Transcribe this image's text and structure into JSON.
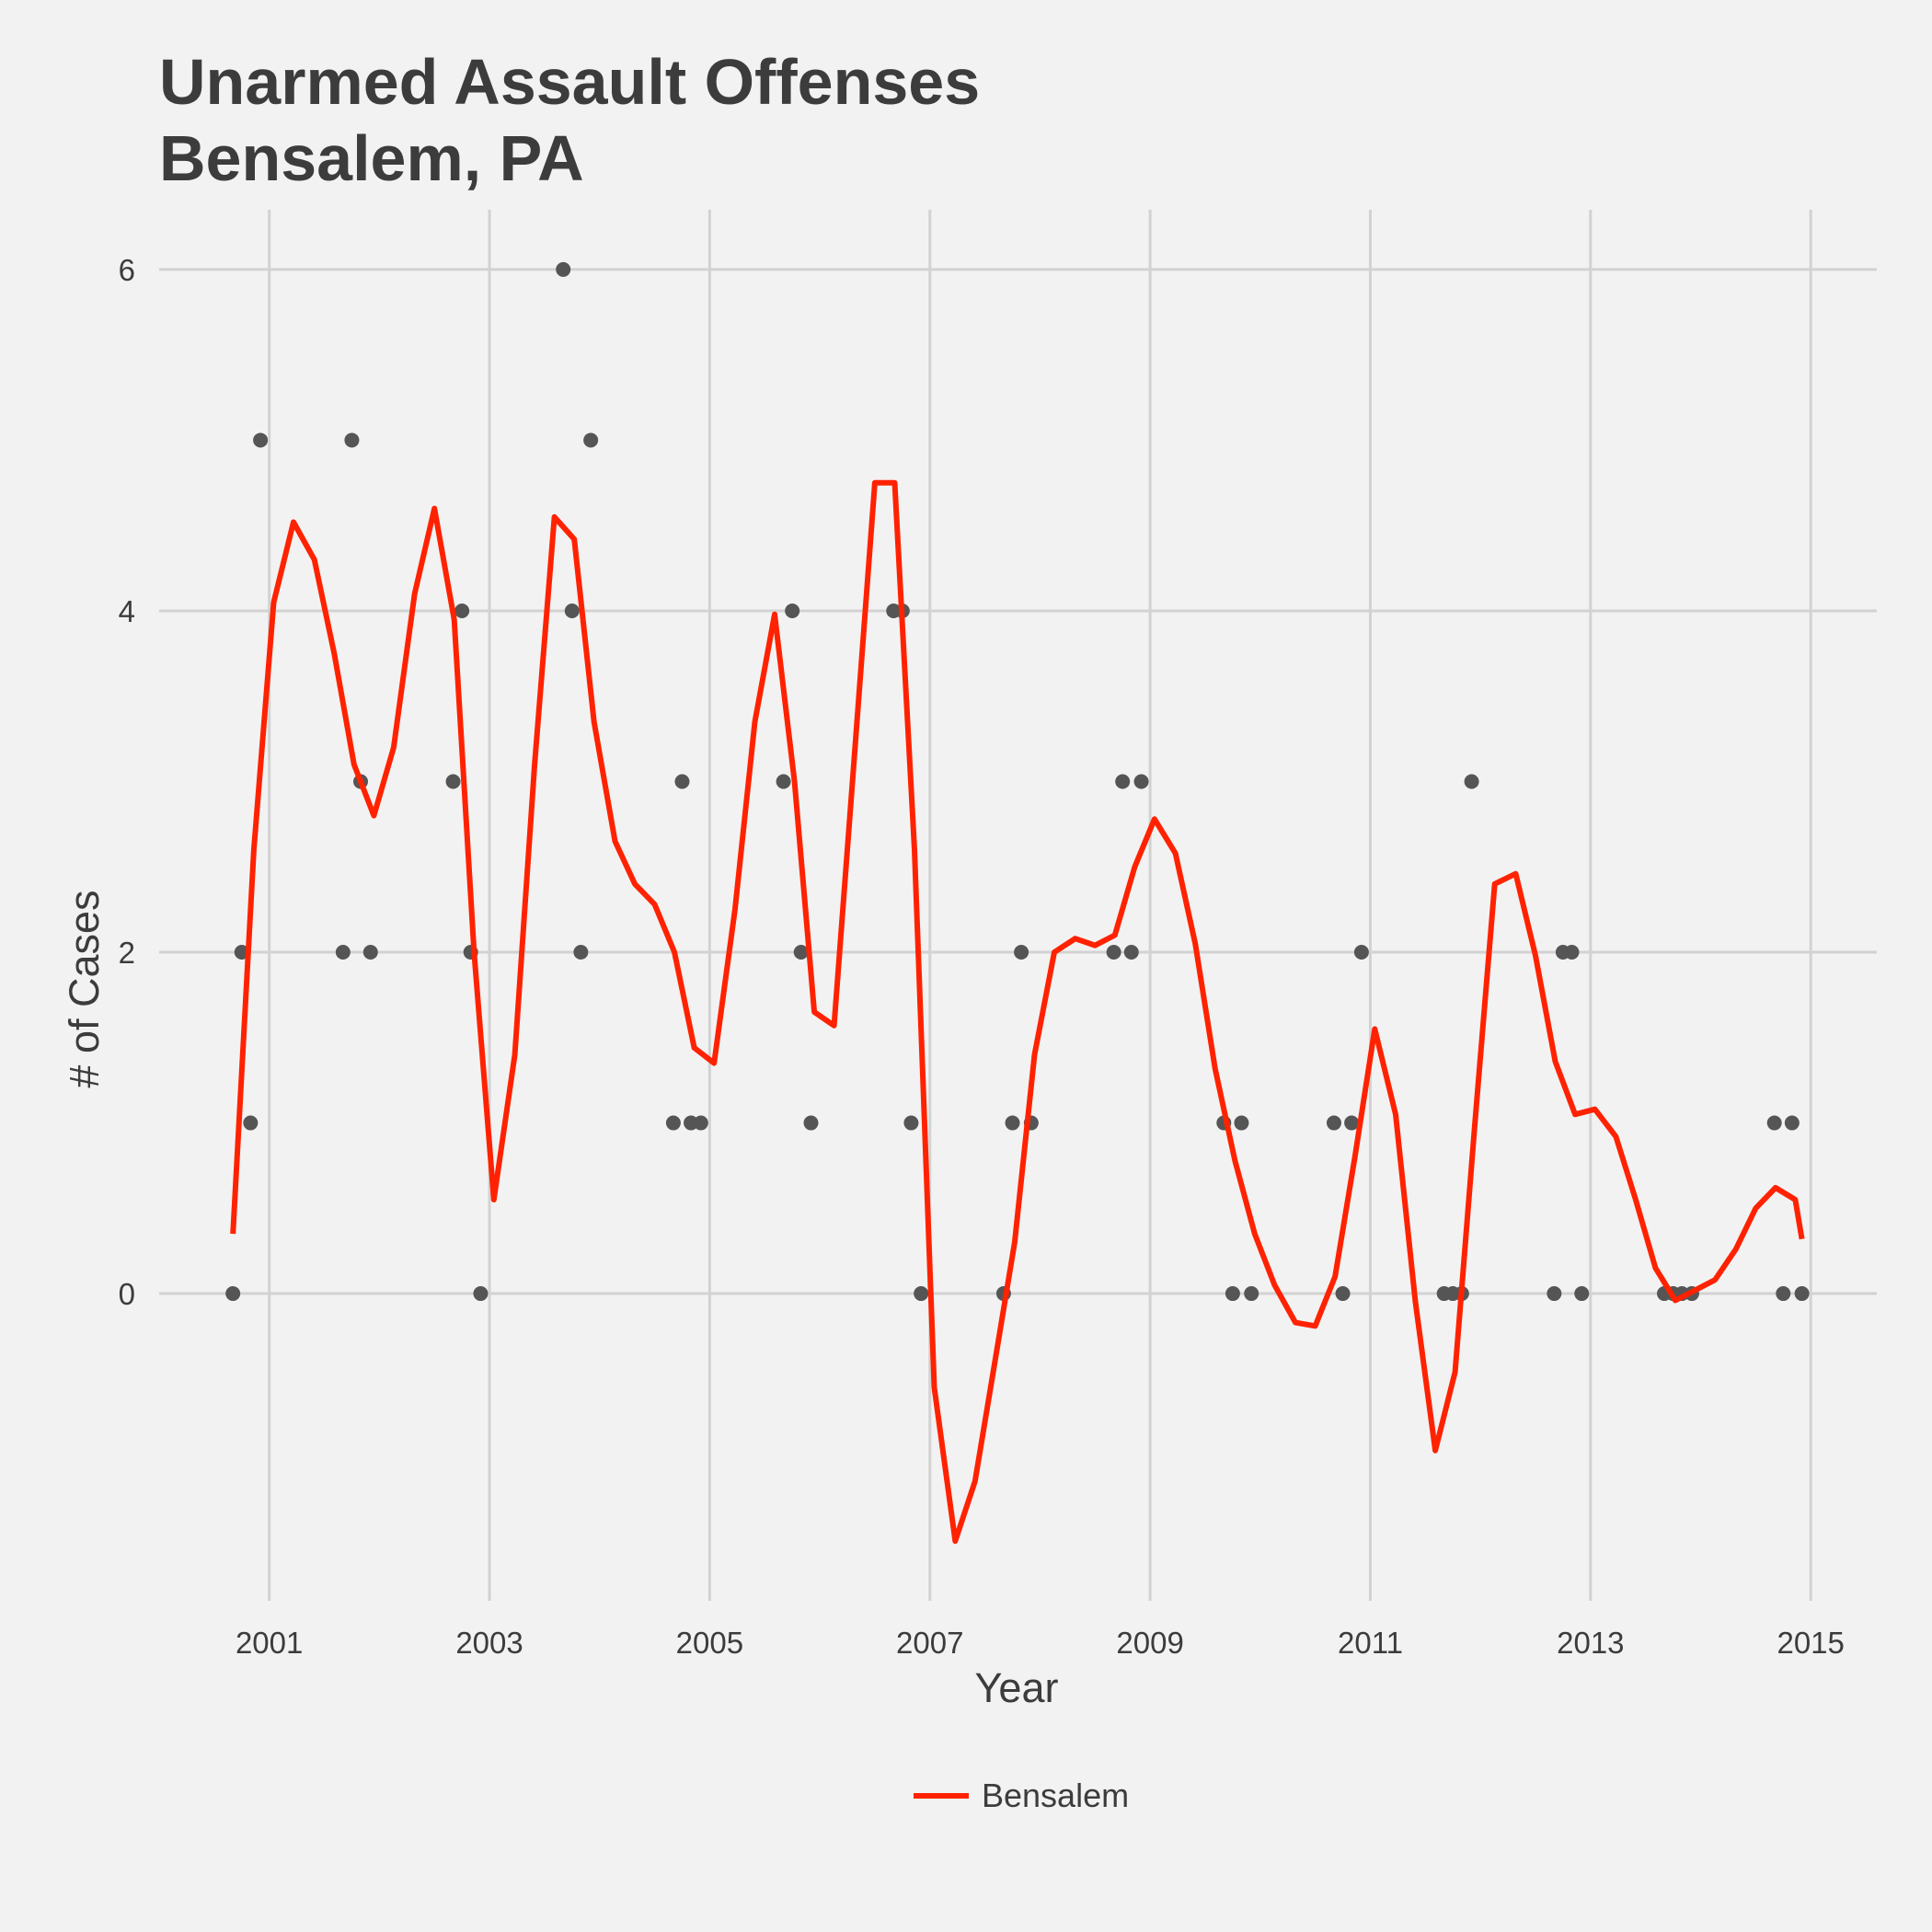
{
  "chart_data": {
    "type": "line",
    "title": [
      "Unarmed Assault Offenses",
      "Bensalem, PA"
    ],
    "xlabel": "Year",
    "ylabel": "# of Cases",
    "xlim": [
      2000.0,
      2015.6
    ],
    "ylim": [
      -1.8,
      6.35
    ],
    "x_ticks": [
      2001,
      2003,
      2005,
      2007,
      2009,
      2011,
      2013,
      2015
    ],
    "y_ticks": [
      0,
      2,
      4,
      6
    ],
    "grid": true,
    "legend": {
      "position": "bottom",
      "entries": [
        "Bensalem"
      ]
    },
    "colors": {
      "line": "#ff2200",
      "points": "#555555",
      "background": "#f2f2f2",
      "grid": "#d2d2d2"
    },
    "points": [
      [
        2000.67,
        0
      ],
      [
        2000.75,
        2
      ],
      [
        2000.83,
        1
      ],
      [
        2000.92,
        5
      ],
      [
        2001.67,
        2
      ],
      [
        2001.75,
        5
      ],
      [
        2001.83,
        3
      ],
      [
        2001.92,
        2
      ],
      [
        2002.67,
        3
      ],
      [
        2002.75,
        4
      ],
      [
        2002.83,
        2
      ],
      [
        2002.92,
        0
      ],
      [
        2003.67,
        6
      ],
      [
        2003.75,
        4
      ],
      [
        2003.83,
        2
      ],
      [
        2003.92,
        5
      ],
      [
        2004.67,
        1
      ],
      [
        2004.75,
        3
      ],
      [
        2004.83,
        1
      ],
      [
        2004.92,
        1
      ],
      [
        2005.67,
        3
      ],
      [
        2005.75,
        4
      ],
      [
        2005.83,
        2
      ],
      [
        2005.92,
        1
      ],
      [
        2006.67,
        4
      ],
      [
        2006.75,
        4
      ],
      [
        2006.83,
        1
      ],
      [
        2006.92,
        0
      ],
      [
        2007.67,
        0
      ],
      [
        2007.75,
        1
      ],
      [
        2007.83,
        2
      ],
      [
        2007.92,
        1
      ],
      [
        2008.67,
        2
      ],
      [
        2008.75,
        3
      ],
      [
        2008.83,
        2
      ],
      [
        2008.92,
        3
      ],
      [
        2009.67,
        1
      ],
      [
        2009.75,
        0
      ],
      [
        2009.83,
        1
      ],
      [
        2009.92,
        0
      ],
      [
        2010.67,
        1
      ],
      [
        2010.75,
        0
      ],
      [
        2010.83,
        1
      ],
      [
        2010.92,
        2
      ],
      [
        2011.67,
        0
      ],
      [
        2011.75,
        0
      ],
      [
        2011.83,
        0
      ],
      [
        2011.92,
        3
      ],
      [
        2012.67,
        0
      ],
      [
        2012.75,
        2
      ],
      [
        2012.83,
        2
      ],
      [
        2012.92,
        0
      ],
      [
        2013.67,
        0
      ],
      [
        2013.75,
        0
      ],
      [
        2013.83,
        0
      ],
      [
        2013.92,
        0
      ],
      [
        2014.67,
        1
      ],
      [
        2014.75,
        0
      ],
      [
        2014.83,
        1
      ],
      [
        2014.92,
        0
      ]
    ],
    "series": [
      {
        "name": "Bensalem",
        "x": [
          2000.67,
          2000.86,
          2001.04,
          2001.22,
          2001.41,
          2001.59,
          2001.77,
          2001.95,
          2002.13,
          2002.32,
          2002.5,
          2002.68,
          2002.86,
          2003.04,
          2003.23,
          2003.41,
          2003.59,
          2003.77,
          2003.95,
          2004.14,
          2004.32,
          2004.5,
          2004.68,
          2004.86,
          2005.04,
          2005.23,
          2005.41,
          2005.59,
          2005.77,
          2005.95,
          2006.13,
          2006.32,
          2006.5,
          2006.68,
          2006.86,
          2007.04,
          2007.23,
          2007.41,
          2007.59,
          2007.77,
          2007.95,
          2008.13,
          2008.32,
          2008.5,
          2008.68,
          2008.86,
          2009.04,
          2009.23,
          2009.41,
          2009.59,
          2009.77,
          2009.95,
          2010.13,
          2010.32,
          2010.5,
          2010.68,
          2010.86,
          2011.04,
          2011.23,
          2011.41,
          2011.59,
          2011.77,
          2011.95,
          2012.13,
          2012.32,
          2012.5,
          2012.68,
          2012.86,
          2013.04,
          2013.23,
          2013.41,
          2013.59,
          2013.77,
          2013.95,
          2014.13,
          2014.32,
          2014.5,
          2014.68,
          2014.86,
          2014.92
        ],
        "values": [
          0.35,
          2.6,
          4.05,
          4.52,
          4.3,
          3.75,
          3.1,
          2.8,
          3.2,
          4.1,
          4.6,
          3.95,
          2.0,
          0.55,
          1.4,
          3.1,
          4.55,
          4.42,
          3.35,
          2.65,
          2.4,
          2.28,
          2.0,
          1.44,
          1.35,
          2.25,
          3.35,
          3.98,
          3.0,
          1.65,
          1.57,
          3.2,
          4.75,
          4.75,
          2.6,
          -0.55,
          -1.45,
          -1.1,
          -0.4,
          0.3,
          1.4,
          2.0,
          2.08,
          2.04,
          2.1,
          2.5,
          2.78,
          2.58,
          2.05,
          1.32,
          0.78,
          0.35,
          0.05,
          -0.17,
          -0.19,
          0.1,
          0.8,
          1.55,
          1.05,
          -0.05,
          -0.92,
          -0.46,
          1.0,
          2.4,
          2.46,
          1.98,
          1.36,
          1.05,
          1.08,
          0.92,
          0.55,
          0.15,
          -0.04,
          0.02,
          0.08,
          0.26,
          0.5,
          0.62,
          0.55,
          0.32
        ]
      }
    ]
  }
}
